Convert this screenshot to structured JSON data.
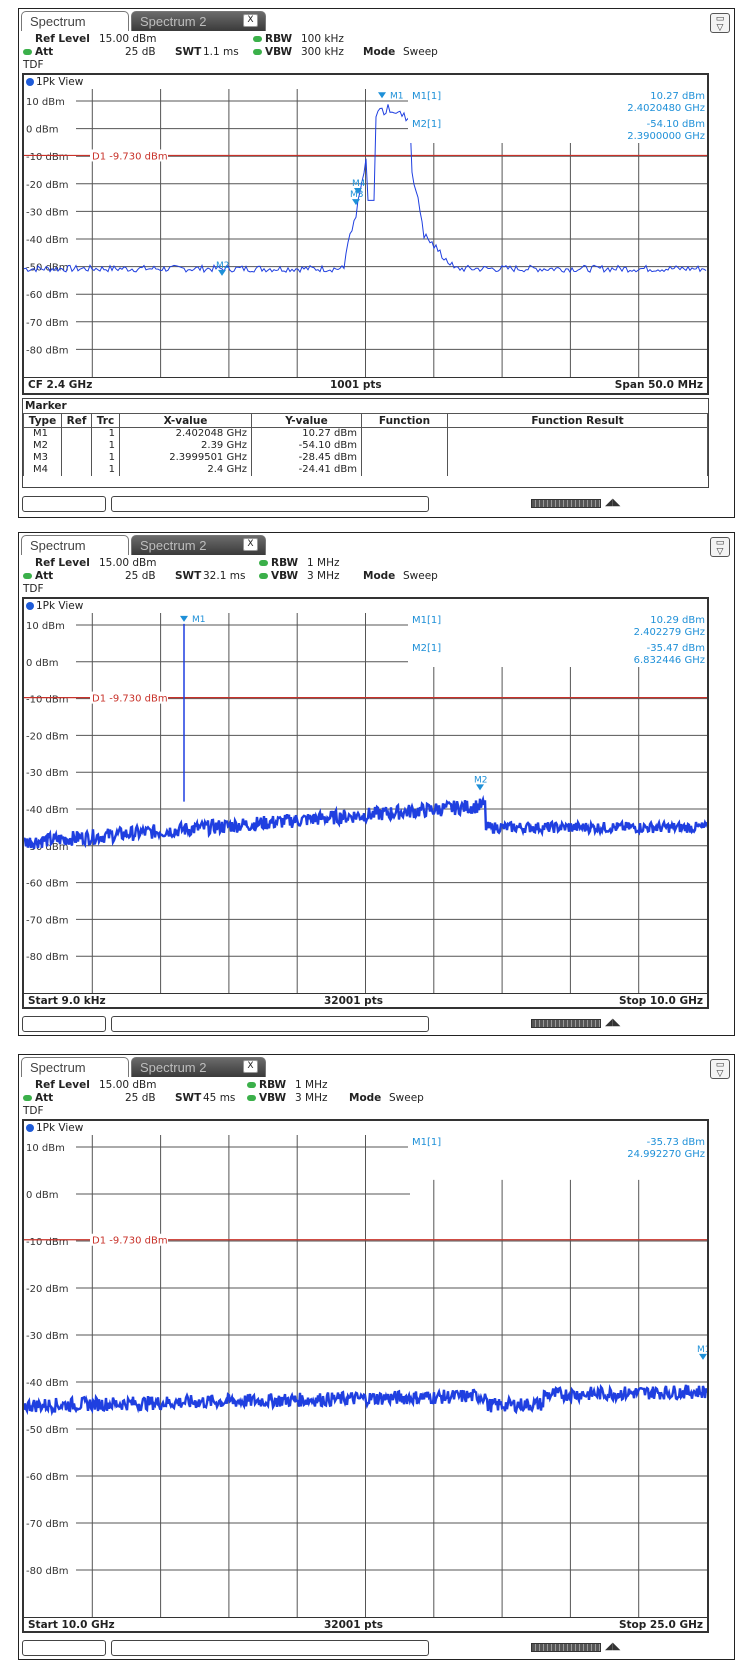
{
  "panels": [
    {
      "tabs": {
        "active": "Spectrum",
        "inactive": "Spectrum 2",
        "close": "X"
      },
      "params": {
        "ref_level_label": "Ref Level",
        "ref_level": "15.00 dBm",
        "att_label": "Att",
        "att": "25 dB",
        "swt_label": "SWT",
        "swt": "1.1 ms",
        "rbw_label": "RBW",
        "rbw": "100 kHz",
        "vbw_label": "VBW",
        "vbw": "300 kHz",
        "mode_label": "Mode",
        "mode": "Sweep",
        "tdf": "TDF"
      },
      "view_label": "1Pk View",
      "y_ticks": [
        "10 dBm",
        "0 dBm",
        "-10 dBm",
        "-20 dBm",
        "-30 dBm",
        "-40 dBm",
        "-50 dBm",
        "-60 dBm",
        "-70 dBm",
        "-80 dBm"
      ],
      "display_line": "D1  -9.730 dBm",
      "marker_readout": [
        {
          "label": "M1[1]",
          "value": "10.27 dBm",
          "freq": "2.4020480 GHz"
        },
        {
          "label": "M2[1]",
          "value": "-54.10 dBm",
          "freq": "2.3900000 GHz"
        }
      ],
      "trace_markers": [
        "M1",
        "M2",
        "M3",
        "M4"
      ],
      "bottom": {
        "left": "CF 2.4 GHz",
        "center": "1001 pts",
        "right": "Span 50.0 MHz"
      },
      "marker_table": {
        "title": "Marker",
        "headers": [
          "Type",
          "Ref",
          "Trc",
          "X-value",
          "Y-value",
          "Function",
          "Function Result"
        ],
        "rows": [
          [
            "M1",
            "",
            "1",
            "2.402048 GHz",
            "10.27 dBm",
            "",
            ""
          ],
          [
            "M2",
            "",
            "1",
            "2.39 GHz",
            "-54.10 dBm",
            "",
            ""
          ],
          [
            "M3",
            "",
            "1",
            "2.3999501 GHz",
            "-28.45 dBm",
            "",
            ""
          ],
          [
            "M4",
            "",
            "1",
            "2.4 GHz",
            "-24.41 dBm",
            "",
            ""
          ]
        ]
      }
    },
    {
      "tabs": {
        "active": "Spectrum",
        "inactive": "Spectrum 2",
        "close": "X"
      },
      "params": {
        "ref_level_label": "Ref Level",
        "ref_level": "15.00 dBm",
        "att_label": "Att",
        "att": "25 dB",
        "swt_label": "SWT",
        "swt": "32.1 ms",
        "rbw_label": "RBW",
        "rbw": "1 MHz",
        "vbw_label": "VBW",
        "vbw": "3 MHz",
        "mode_label": "Mode",
        "mode": "Sweep",
        "tdf": "TDF"
      },
      "view_label": "1Pk View",
      "y_ticks": [
        "10 dBm",
        "0 dBm",
        "-10 dBm",
        "-20 dBm",
        "-30 dBm",
        "-40 dBm",
        "-50 dBm",
        "-60 dBm",
        "-70 dBm",
        "-80 dBm"
      ],
      "display_line": "D1  -9.730 dBm",
      "marker_readout": [
        {
          "label": "M1[1]",
          "value": "10.29 dBm",
          "freq": "2.402279 GHz"
        },
        {
          "label": "M2[1]",
          "value": "-35.47 dBm",
          "freq": "6.832446 GHz"
        }
      ],
      "trace_markers": [
        "M1",
        "M2"
      ],
      "bottom": {
        "left": "Start 9.0 kHz",
        "center": "32001 pts",
        "right": "Stop 10.0 GHz"
      }
    },
    {
      "tabs": {
        "active": "Spectrum",
        "inactive": "Spectrum 2",
        "close": "X"
      },
      "params": {
        "ref_level_label": "Ref Level",
        "ref_level": "15.00 dBm",
        "att_label": "Att",
        "att": "25 dB",
        "swt_label": "SWT",
        "swt": "45 ms",
        "rbw_label": "RBW",
        "rbw": "1 MHz",
        "vbw_label": "VBW",
        "vbw": "3 MHz",
        "mode_label": "Mode",
        "mode": "Sweep",
        "tdf": "TDF"
      },
      "view_label": "1Pk View",
      "y_ticks": [
        "10 dBm",
        "0 dBm",
        "-10 dBm",
        "-20 dBm",
        "-30 dBm",
        "-40 dBm",
        "-50 dBm",
        "-60 dBm",
        "-70 dBm",
        "-80 dBm"
      ],
      "display_line": "D1  -9.730 dBm",
      "marker_readout": [
        {
          "label": "M1[1]",
          "value": "-35.73 dBm",
          "freq": "24.992270 GHz"
        }
      ],
      "trace_markers": [
        "M1"
      ],
      "bottom": {
        "left": "Start 10.0 GHz",
        "center": "32001 pts",
        "right": "Stop 25.0 GHz"
      }
    }
  ],
  "colors": {
    "trace": "#1f3fe0",
    "marker": "#1e90d8",
    "display_line": "#c8322a",
    "grid": "#555555"
  }
}
